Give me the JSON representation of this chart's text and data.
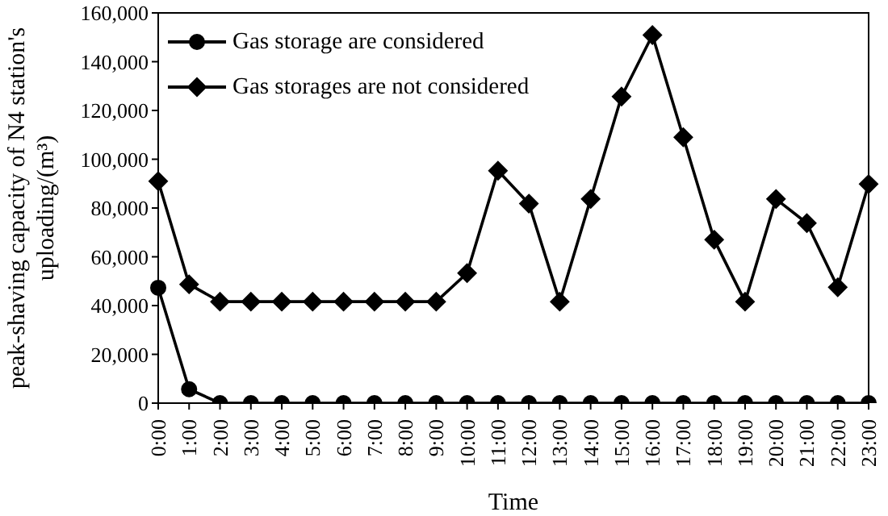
{
  "chart_data": {
    "type": "line",
    "xlabel": "Time",
    "ylabel": "peak-shaving capacity of  N4 station's uploading/(m³)",
    "categories": [
      "0:00",
      "1:00",
      "2:00",
      "3:00",
      "4:00",
      "5:00",
      "6:00",
      "7:00",
      "8:00",
      "9:00",
      "10:00",
      "11:00",
      "12:00",
      "13:00",
      "14:00",
      "15:00",
      "16:00",
      "17:00",
      "18:00",
      "19:00",
      "20:00",
      "21:00",
      "22:00",
      "23:00"
    ],
    "series": [
      {
        "name": "Gas storage are considered",
        "color": "#000000",
        "marker": "circle",
        "values": [
          47300,
          5700,
          0,
          0,
          0,
          0,
          0,
          0,
          0,
          0,
          0,
          0,
          0,
          0,
          0,
          0,
          0,
          0,
          0,
          0,
          0,
          0,
          0,
          0
        ]
      },
      {
        "name": "Gas storages are not considered",
        "color": "#000000",
        "marker": "diamond",
        "values": [
          91000,
          48700,
          41600,
          41600,
          41600,
          41600,
          41600,
          41600,
          41600,
          41600,
          53300,
          95300,
          81800,
          41600,
          83700,
          125700,
          150900,
          109000,
          67000,
          41600,
          83700,
          73800,
          47500,
          89800
        ]
      }
    ],
    "ylim": [
      0,
      160000
    ],
    "yticks": [
      0,
      {
        "value": 20000,
        "label": "20,000"
      },
      {
        "value": 40000,
        "label": "40,000"
      },
      {
        "value": 60000,
        "label": "60,000"
      },
      {
        "value": 80000,
        "label": "80,000"
      },
      {
        "value": 100000,
        "label": "100,000"
      },
      {
        "value": 120000,
        "label": "120,000"
      },
      {
        "value": 140000,
        "label": "140,000"
      },
      {
        "value": 160000,
        "label": "160,000"
      }
    ],
    "grid": false,
    "legend": "top left",
    "line_style": "solid"
  }
}
